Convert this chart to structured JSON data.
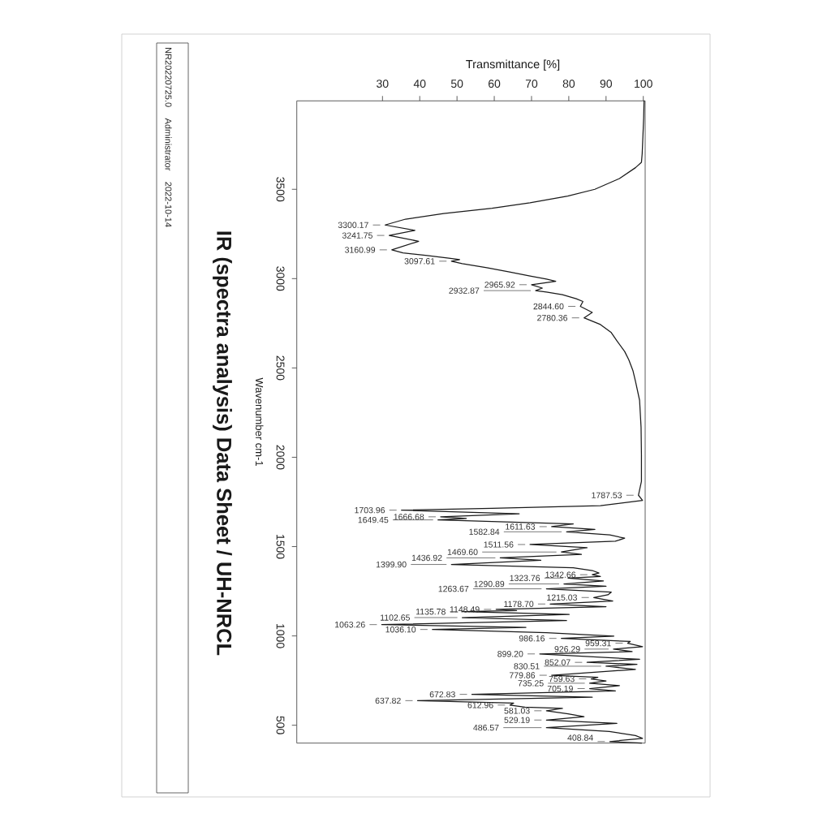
{
  "chart_data": {
    "type": "line",
    "title": "IR (spectra analysis) Data Sheet / UH-NRCL",
    "xlabel": "Transmittance [%]",
    "ylabel": "Wavenumber cm-1",
    "color": "#1a1a1a",
    "x": [
      100.2,
      100.1,
      99.9,
      99.7,
      99.5,
      97.9,
      93.6,
      87.0,
      79.7,
      69.6,
      59.4,
      46.4,
      36.2,
      30.7,
      38.7,
      31.8,
      39.7,
      32.5,
      35.5,
      42.0,
      47.8,
      50.7,
      48.5,
      51.4,
      58.0,
      63.8,
      69.6,
      74.0,
      76.5,
      70.0,
      72.9,
      71.1,
      74.0,
      78.3,
      82.0,
      83.8,
      83.1,
      86.3,
      84.1,
      88.5,
      91.4,
      92.9,
      95.0,
      96.1,
      97.2,
      97.9,
      99.0,
      99.4,
      99.5,
      99.5,
      98.7,
      99.8,
      88.5,
      59.4,
      35.1,
      66.7,
      45.6,
      52.5,
      44.9,
      81.2,
      75.4,
      87.0,
      79.4,
      91.0,
      95.0,
      92.5,
      69.6,
      84.9,
      78.0,
      83.4,
      61.6,
      72.5,
      48.5,
      81.2,
      86.3,
      88.1,
      86.3,
      88.5,
      79.8,
      89.3,
      78.7,
      90.0,
      74.0,
      91.4,
      90.5,
      86.7,
      91.8,
      75.0,
      90.0,
      60.5,
      66.0,
      51.4,
      80.1,
      51.4,
      79.4,
      29.8,
      68.5,
      43.4,
      74.0,
      92.1,
      78.0,
      96.5,
      95.8,
      99.8,
      92.0,
      97.0,
      72.2,
      99.0,
      84.9,
      98.3,
      90.0,
      97.9,
      75.4,
      87.8,
      86.0,
      90.0,
      85.6,
      93.6,
      85.6,
      92.5,
      54.0,
      86.3,
      39.4,
      65.2,
      64.2,
      68.2,
      78.3,
      74.0,
      79.8,
      84.1,
      74.0,
      92.9,
      74.0,
      90.9,
      97.9,
      99.8,
      91.0,
      99.5
    ],
    "values": [
      3995,
      3900,
      3800,
      3700,
      3651,
      3621,
      3560,
      3500,
      3462,
      3424,
      3394,
      3364,
      3333,
      3300.17,
      3270,
      3241.75,
      3209,
      3160.99,
      3144,
      3129,
      3114,
      3106,
      3097.61,
      3084,
      3061,
      3038,
      3015,
      2997,
      2985,
      2965.92,
      2947,
      2932.87,
      2925,
      2910,
      2887,
      2872,
      2844.6,
      2811,
      2780.36,
      2743,
      2698,
      2652,
      2592,
      2546,
      2486,
      2425,
      2319,
      2168,
      2017,
      1865,
      1787.53,
      1759,
      1729,
      1714,
      1703.96,
      1684,
      1666.68,
      1657,
      1649.45,
      1627,
      1611.63,
      1596,
      1582.84,
      1565,
      1547,
      1530,
      1511.56,
      1494,
      1469.6,
      1456,
      1436.92,
      1423,
      1399.9,
      1381,
      1366,
      1352,
      1342.66,
      1333,
      1323.76,
      1308,
      1290.89,
      1278,
      1263.67,
      1245,
      1230,
      1215.03,
      1195,
      1178.7,
      1164,
      1148.49,
      1142,
      1135.78,
      1120,
      1102.65,
      1086,
      1063.26,
      1048,
      1036.1,
      1018,
      999,
      986.16,
      969,
      959.31,
      940,
      926.29,
      912,
      899.2,
      869,
      852.07,
      841,
      830.51,
      813,
      779.86,
      768,
      759.63,
      748,
      735.25,
      722,
      705.19,
      692,
      672.83,
      657,
      637.82,
      624,
      612.96,
      601,
      594,
      581.03,
      564,
      548,
      529.19,
      510,
      486.57,
      465,
      442,
      427,
      408.84,
      400
    ],
    "xlim": [
      7,
      100.5
    ],
    "ylim": [
      400,
      3995
    ],
    "xticks": [
      30,
      40,
      50,
      60,
      70,
      80,
      90,
      100
    ],
    "yticks": [
      500,
      1000,
      1500,
      2000,
      2500,
      3000,
      3500
    ],
    "annotations": [
      "NR20220725.0",
      "Administrator",
      "2022-10-14",
      {
        "text": "3300.17",
        "x": 30.7,
        "y": 3300.17
      },
      {
        "text": "3241.75",
        "x": 31.8,
        "y": 3241.75
      },
      {
        "text": "3160.99",
        "x": 32.5,
        "y": 3160.99
      },
      {
        "text": "3097.61",
        "x": 48.5,
        "y": 3097.61
      },
      {
        "text": "2965.92",
        "x": 70.0,
        "y": 2965.92
      },
      {
        "text": "2932.87",
        "x": 71.1,
        "y": 2932.87
      },
      {
        "text": "2844.60",
        "x": 83.1,
        "y": 2844.6
      },
      {
        "text": "2780.36",
        "x": 84.1,
        "y": 2780.36
      },
      {
        "text": "1787.53",
        "x": 98.7,
        "y": 1787.53
      },
      {
        "text": "1703.96",
        "x": 35.1,
        "y": 1703.96
      },
      {
        "text": "1666.68",
        "x": 45.6,
        "y": 1666.68
      },
      {
        "text": "1649.45",
        "x": 44.9,
        "y": 1649.45
      },
      {
        "text": "1611.63",
        "x": 75.4,
        "y": 1611.63
      },
      {
        "text": "1582.84",
        "x": 79.4,
        "y": 1582.84
      },
      {
        "text": "1511.56",
        "x": 69.6,
        "y": 1511.56
      },
      {
        "text": "1469.60",
        "x": 78.0,
        "y": 1469.6
      },
      {
        "text": "1436.92",
        "x": 61.6,
        "y": 1436.92
      },
      {
        "text": "1399.90",
        "x": 48.5,
        "y": 1399.9
      },
      {
        "text": "1342.66",
        "x": 86.3,
        "y": 1342.66
      },
      {
        "text": "1323.76",
        "x": 79.8,
        "y": 1323.76
      },
      {
        "text": "1290.89",
        "x": 78.7,
        "y": 1290.89
      },
      {
        "text": "1263.67",
        "x": 74.0,
        "y": 1263.67
      },
      {
        "text": "1215.03",
        "x": 86.7,
        "y": 1215.03
      },
      {
        "text": "1178.70",
        "x": 75.0,
        "y": 1178.7
      },
      {
        "text": "1148.49",
        "x": 60.5,
        "y": 1148.49
      },
      {
        "text": "1135.78",
        "x": 51.4,
        "y": 1135.78
      },
      {
        "text": "1102.65",
        "x": 51.4,
        "y": 1102.65
      },
      {
        "text": "1063.26",
        "x": 29.8,
        "y": 1063.26
      },
      {
        "text": "1036.10",
        "x": 43.4,
        "y": 1036.1
      },
      {
        "text": "986.16",
        "x": 78.0,
        "y": 986.16
      },
      {
        "text": "959.31",
        "x": 95.8,
        "y": 959.31
      },
      {
        "text": "926.29",
        "x": 92.0,
        "y": 926.29
      },
      {
        "text": "899.20",
        "x": 72.2,
        "y": 899.2
      },
      {
        "text": "852.07",
        "x": 84.9,
        "y": 852.07
      },
      {
        "text": "830.51",
        "x": 90.0,
        "y": 830.51
      },
      {
        "text": "779.86",
        "x": 75.4,
        "y": 779.86
      },
      {
        "text": "759.63",
        "x": 86.0,
        "y": 759.63
      },
      {
        "text": "735.25",
        "x": 85.6,
        "y": 735.25
      },
      {
        "text": "705.19",
        "x": 85.6,
        "y": 705.19
      },
      {
        "text": "672.83",
        "x": 54.0,
        "y": 672.83
      },
      {
        "text": "637.82",
        "x": 39.4,
        "y": 637.82
      },
      {
        "text": "612.96",
        "x": 64.2,
        "y": 612.96
      },
      {
        "text": "581.03",
        "x": 74.0,
        "y": 581.03
      },
      {
        "text": "529.19",
        "x": 74.0,
        "y": 529.19
      },
      {
        "text": "486.57",
        "x": 74.0,
        "y": 486.57
      },
      {
        "text": "408.84",
        "x": 91.0,
        "y": 408.84
      }
    ]
  }
}
